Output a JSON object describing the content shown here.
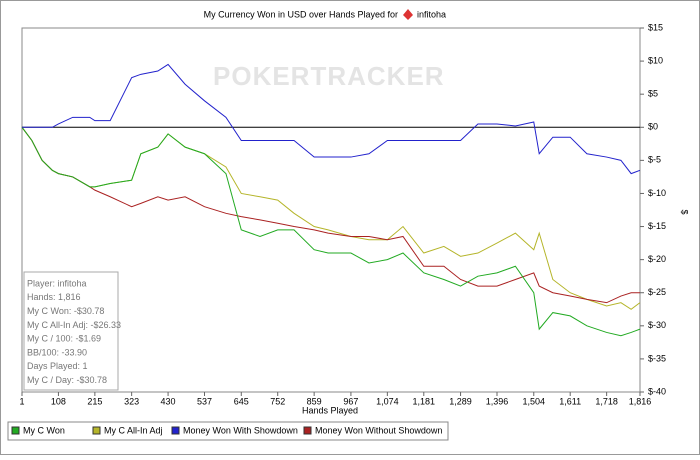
{
  "chart_data": {
    "type": "line",
    "title": "My Currency Won in USD over Hands Played for",
    "player": "infitoha",
    "watermark": "POKERTRACKER",
    "xlabel": "Hands Played",
    "ylabel": "$",
    "x": [
      1,
      30,
      60,
      90,
      108,
      150,
      200,
      215,
      260,
      323,
      350,
      400,
      430,
      480,
      537,
      600,
      645,
      700,
      752,
      800,
      859,
      900,
      967,
      1020,
      1074,
      1120,
      1181,
      1240,
      1289,
      1340,
      1396,
      1450,
      1504,
      1520,
      1560,
      1611,
      1660,
      1718,
      1760,
      1790,
      1816
    ],
    "series": [
      {
        "name": "My C Won",
        "color": "#22aa22",
        "values": [
          0,
          -2,
          -5,
          -6.5,
          -7,
          -7.5,
          -9,
          -9,
          -8.5,
          -8,
          -4,
          -3,
          -1,
          -3,
          -4,
          -7,
          -15.5,
          -16.5,
          -15.5,
          -15.5,
          -18.5,
          -19,
          -19,
          -20.5,
          -20,
          -19,
          -22,
          -23,
          -24,
          -22.5,
          -22,
          -21,
          -25,
          -30.5,
          -28,
          -28.5,
          -30,
          -31,
          -31.5,
          -31,
          -30.5
        ]
      },
      {
        "name": "My C All-In Adj",
        "color": "#b5b52a",
        "values": [
          0,
          -2,
          -5,
          -6.5,
          -7,
          -7.5,
          -9,
          -9,
          -8.5,
          -8,
          -4,
          -3,
          -1,
          -3,
          -4,
          -6,
          -10,
          -10.5,
          -11,
          -13,
          -15,
          -15.5,
          -16.5,
          -17,
          -17,
          -15,
          -19,
          -18,
          -19.5,
          -19,
          -17.5,
          -16,
          -18.5,
          -16,
          -23,
          -25,
          -26,
          -27,
          -26.5,
          -27.5,
          -26.5
        ]
      },
      {
        "name": "Money Won With Showdown",
        "color": "#2222cc",
        "values": [
          0,
          0,
          0,
          0,
          0.5,
          1.5,
          1.5,
          1,
          1,
          7.5,
          8,
          8.5,
          9.5,
          6.5,
          4,
          1.5,
          -2,
          -2,
          -2,
          -2,
          -4.5,
          -4.5,
          -4.5,
          -4,
          -2,
          -2,
          -2,
          -2,
          -2,
          0.5,
          0.5,
          0.2,
          0.8,
          -4,
          -1.5,
          -1.5,
          -4,
          -4.5,
          -5,
          -7,
          -6.5
        ]
      },
      {
        "name": "Money Won Without Showdown",
        "color": "#aa2222",
        "values": [
          0,
          -2,
          -5,
          -6.5,
          -7,
          -7.5,
          -9,
          -9.5,
          -10.5,
          -12,
          -11.5,
          -10.5,
          -11,
          -10.5,
          -12,
          -13,
          -13.5,
          -14,
          -14.5,
          -15,
          -15.5,
          -16,
          -16.5,
          -16.5,
          -17,
          -16.5,
          -21,
          -21,
          -23,
          -24,
          -24,
          -23,
          -22,
          -24,
          -25,
          -25.5,
          -26,
          -26.5,
          -25.5,
          -25,
          -25
        ]
      }
    ],
    "xlim": [
      1,
      1816
    ],
    "xticks": [
      1,
      108,
      215,
      323,
      430,
      537,
      645,
      752,
      859,
      967,
      {
        "value": 1074,
        "label": "1,074"
      },
      {
        "value": 1181,
        "label": "1,181"
      },
      {
        "value": 1289,
        "label": "1,289"
      },
      {
        "value": 1396,
        "label": "1,396"
      },
      {
        "value": 1504,
        "label": "1,504"
      },
      {
        "value": 1611,
        "label": "1,611"
      },
      {
        "value": 1718,
        "label": "1,718"
      },
      {
        "value": 1816,
        "label": "1,816"
      }
    ],
    "ylim": [
      -40,
      15
    ],
    "yticks": [
      {
        "value": 15,
        "label": "$15"
      },
      {
        "value": 10,
        "label": "$10"
      },
      {
        "value": 5,
        "label": "$5"
      },
      {
        "value": 0,
        "label": "$0"
      },
      {
        "value": -5,
        "label": "$-5"
      },
      {
        "value": -10,
        "label": "$-10"
      },
      {
        "value": -15,
        "label": "$-15"
      },
      {
        "value": -20,
        "label": "$-20"
      },
      {
        "value": -25,
        "label": "$-25"
      },
      {
        "value": -30,
        "label": "$-30"
      },
      {
        "value": -35,
        "label": "$-35"
      },
      {
        "value": -40,
        "label": "$-40"
      }
    ],
    "info": [
      "Player: infitoha",
      "Hands: 1,816",
      "My C Won: -$30.78",
      "My C All-In Adj: -$26.33",
      "My C / 100: -$1.69",
      "BB/100: -33.90",
      "Days Played: 1",
      "My C / Day: -$30.78"
    ]
  }
}
